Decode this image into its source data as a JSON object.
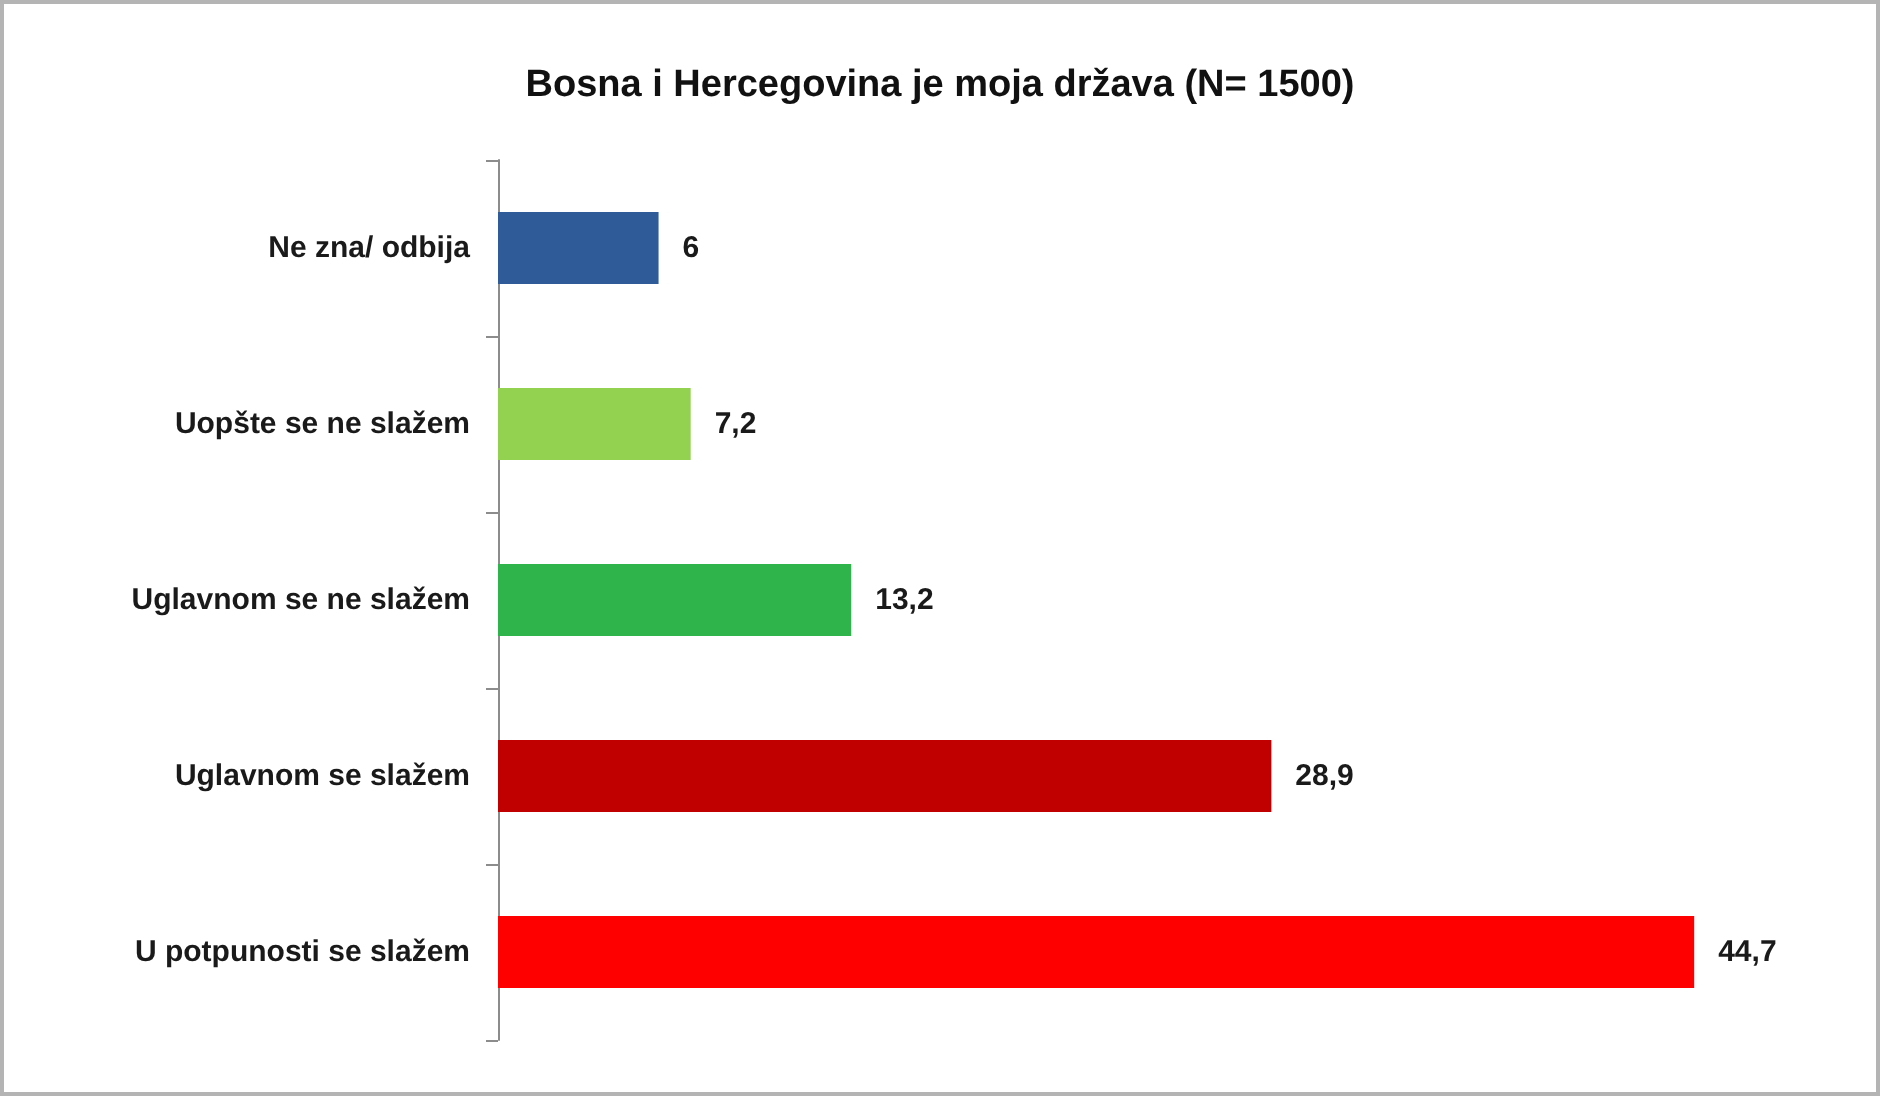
{
  "chart_data": {
    "type": "bar",
    "orientation": "horizontal",
    "title": "Bosna i Hercegovina je moja država (N= 1500)",
    "categories": [
      "Ne zna/ odbija",
      "Uopšte se ne slažem",
      "Uglavnom se ne slažem",
      "Uglavnom se slažem",
      "U potpunosti se slažem"
    ],
    "values": [
      6,
      7.2,
      13.2,
      28.9,
      44.7
    ],
    "colors": [
      "#2f5c98",
      "#93d150",
      "#2eb44b",
      "#c00000",
      "#ff0000"
    ],
    "value_labels": [
      "6",
      "7,2",
      "13,2",
      "28,9",
      "44,7"
    ],
    "tick_labels": "y"
  }
}
